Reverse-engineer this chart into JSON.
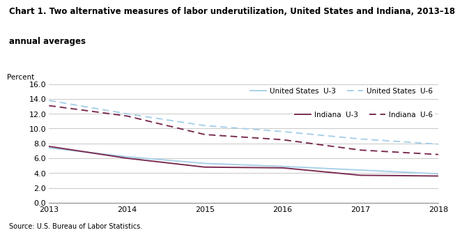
{
  "title_line1": "Chart 1. Two alternative measures of labor underutilization, United States and Indiana, 2013–18",
  "title_line2": "annual averages",
  "ylabel": "Percent",
  "xlabel_source": "Source: U.S. Bureau of Labor Statistics.",
  "years": [
    2013,
    2014,
    2015,
    2016,
    2017,
    2018
  ],
  "us_u3": [
    7.4,
    6.2,
    5.3,
    4.9,
    4.4,
    3.9
  ],
  "us_u6": [
    13.8,
    12.0,
    10.4,
    9.6,
    8.6,
    7.9
  ],
  "in_u3": [
    7.6,
    6.0,
    4.8,
    4.7,
    3.7,
    3.6
  ],
  "in_u6": [
    13.1,
    11.7,
    9.2,
    8.5,
    7.1,
    6.5
  ],
  "color_us": "#a8d0e8",
  "color_in": "#7b2d52",
  "ylim": [
    0.0,
    16.0
  ],
  "yticks": [
    0.0,
    2.0,
    4.0,
    6.0,
    8.0,
    10.0,
    12.0,
    14.0,
    16.0
  ],
  "legend1_labels": [
    "United States  U-3",
    "United States  U-6"
  ],
  "legend2_labels": [
    "Indiana  U-3",
    "Indiana  U-6"
  ],
  "title_fontsize": 8.5,
  "label_fontsize": 7.5,
  "tick_fontsize": 8,
  "legend_fontsize": 7.5,
  "source_fontsize": 7
}
